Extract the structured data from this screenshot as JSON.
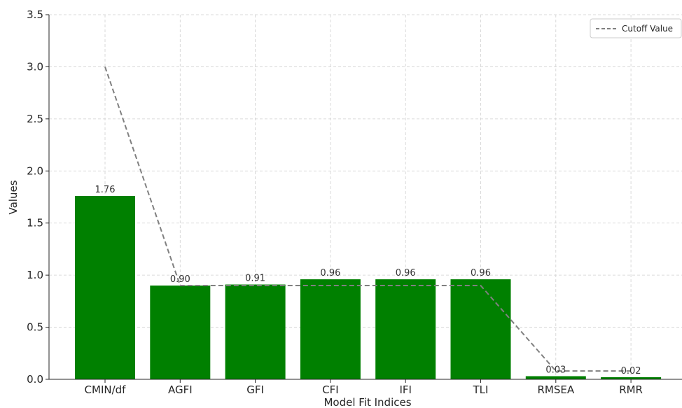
{
  "chart_data": {
    "type": "bar",
    "title": "",
    "xlabel": "Model Fit Indices",
    "ylabel": "Values",
    "categories": [
      "CMIN/df",
      "AGFI",
      "GFI",
      "CFI",
      "IFI",
      "TLI",
      "RMSEA",
      "RMR"
    ],
    "series": [
      {
        "values": [
          1.76,
          0.9,
          0.91,
          0.96,
          0.96,
          0.96,
          0.03,
          0.02
        ],
        "labels": [
          "1.76",
          "0.90",
          "0.91",
          "0.96",
          "0.96",
          "0.96",
          "0.03",
          "0.02"
        ],
        "color": "#008000"
      },
      {
        "name": "Cutoff Value",
        "style": "dashed-line",
        "values": [
          3.0,
          0.9,
          0.9,
          0.9,
          0.9,
          0.9,
          0.08,
          0.08
        ],
        "color": "#808080"
      }
    ],
    "ylim": [
      0,
      3.5
    ],
    "yticks": [
      "0.0",
      "0.5",
      "1.0",
      "1.5",
      "2.0",
      "2.5",
      "3.0",
      "3.5"
    ],
    "grid": true,
    "legend_position": "top-right"
  }
}
